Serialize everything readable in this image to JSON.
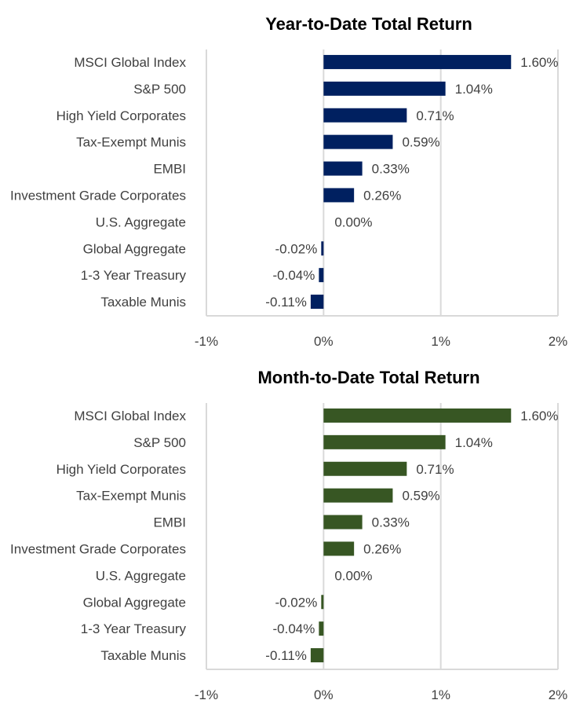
{
  "chart_data": [
    {
      "type": "bar",
      "orientation": "horizontal",
      "title": "Year-to-Date Total Return",
      "categories": [
        "MSCI Global Index",
        "S&P 500",
        "High Yield Corporates",
        "Tax-Exempt Munis",
        "EMBI",
        "Investment Grade Corporates",
        "U.S. Aggregate",
        "Global Aggregate",
        "1-3 Year Treasury",
        "Taxable Munis"
      ],
      "values": [
        1.6,
        1.04,
        0.71,
        0.59,
        0.33,
        0.26,
        0.0,
        -0.02,
        -0.04,
        -0.11
      ],
      "data_labels": [
        "1.60%",
        "1.04%",
        "0.71%",
        "0.59%",
        "0.33%",
        "0.26%",
        "0.00%",
        "-0.02%",
        "-0.04%",
        "-0.11%"
      ],
      "xlim": [
        -1,
        2
      ],
      "x_ticks": [
        -1,
        0,
        1,
        2
      ],
      "x_tick_labels": [
        "-1%",
        "0%",
        "1%",
        "2%"
      ],
      "xlabel": "",
      "ylabel": "",
      "grid": true,
      "color": "#002060"
    },
    {
      "type": "bar",
      "orientation": "horizontal",
      "title": "Month-to-Date Total Return",
      "categories": [
        "MSCI Global Index",
        "S&P 500",
        "High Yield Corporates",
        "Tax-Exempt Munis",
        "EMBI",
        "Investment Grade Corporates",
        "U.S. Aggregate",
        "Global Aggregate",
        "1-3 Year Treasury",
        "Taxable Munis"
      ],
      "values": [
        1.6,
        1.04,
        0.71,
        0.59,
        0.33,
        0.26,
        0.0,
        -0.02,
        -0.04,
        -0.11
      ],
      "data_labels": [
        "1.60%",
        "1.04%",
        "0.71%",
        "0.59%",
        "0.33%",
        "0.26%",
        "0.00%",
        "-0.02%",
        "-0.04%",
        "-0.11%"
      ],
      "xlim": [
        -1,
        2
      ],
      "x_ticks": [
        -1,
        0,
        1,
        2
      ],
      "x_tick_labels": [
        "-1%",
        "0%",
        "1%",
        "2%"
      ],
      "xlabel": "",
      "ylabel": "",
      "grid": true,
      "color": "#375623"
    }
  ]
}
